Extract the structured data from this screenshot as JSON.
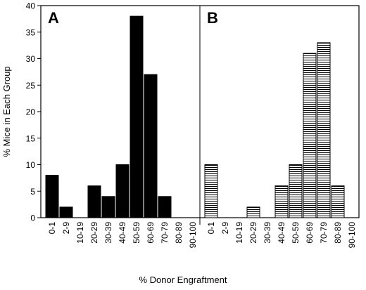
{
  "chart_data": {
    "type": "bar",
    "xlabel": "% Donor Engraftment",
    "ylabel": "% Mice in Each Group",
    "ylim": [
      0,
      40
    ],
    "yticks": [
      0,
      5,
      10,
      15,
      20,
      25,
      30,
      35,
      40
    ],
    "categories": [
      "0-1",
      "2-9",
      "10-19",
      "20-29",
      "30-39",
      "40-49",
      "50-59",
      "60-69",
      "70-79",
      "80-89",
      "90-100"
    ],
    "panels": [
      {
        "label": "A",
        "fill": "solid black",
        "values": [
          8,
          2,
          0,
          6,
          4,
          10,
          38,
          27,
          4,
          0,
          0
        ]
      },
      {
        "label": "B",
        "fill": "horizontal stripes",
        "values": [
          10,
          0,
          0,
          2,
          0,
          6,
          10,
          31,
          33,
          6,
          0
        ]
      }
    ]
  }
}
